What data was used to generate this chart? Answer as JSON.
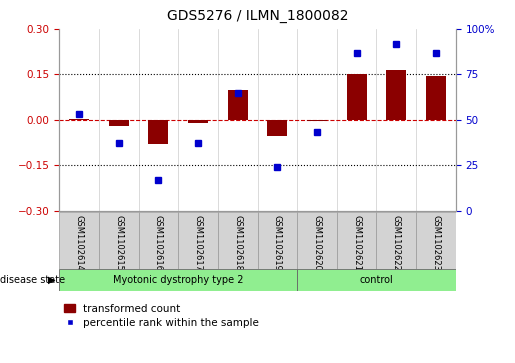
{
  "title": "GDS5276 / ILMN_1800082",
  "samples": [
    "GSM1102614",
    "GSM1102615",
    "GSM1102616",
    "GSM1102617",
    "GSM1102618",
    "GSM1102619",
    "GSM1102620",
    "GSM1102621",
    "GSM1102622",
    "GSM1102623"
  ],
  "bar_values": [
    0.003,
    -0.02,
    -0.08,
    -0.012,
    0.1,
    -0.055,
    -0.005,
    0.15,
    0.165,
    0.145
  ],
  "dot_values": [
    53,
    37,
    17,
    37,
    65,
    24,
    43,
    87,
    92,
    87
  ],
  "group1_count": 6,
  "group2_count": 4,
  "group1_label": "Myotonic dystrophy type 2",
  "group2_label": "control",
  "bar_color": "#8B0000",
  "dot_color": "#0000CD",
  "dashed_line_color": "#CC0000",
  "left_ylim": [
    -0.3,
    0.3
  ],
  "right_ylim": [
    0,
    100
  ],
  "left_yticks": [
    -0.3,
    -0.15,
    0.0,
    0.15,
    0.3
  ],
  "right_yticks": [
    0,
    25,
    50,
    75,
    100
  ],
  "right_yticklabels": [
    "0",
    "25",
    "50",
    "75",
    "100%"
  ],
  "hlines": [
    0.15,
    -0.15
  ],
  "label_bg_color": "#d3d3d3",
  "group_color": "#90EE90",
  "disease_state_label": "disease state",
  "legend_bar_label": "transformed count",
  "legend_dot_label": "percentile rank within the sample",
  "bar_width": 0.5
}
